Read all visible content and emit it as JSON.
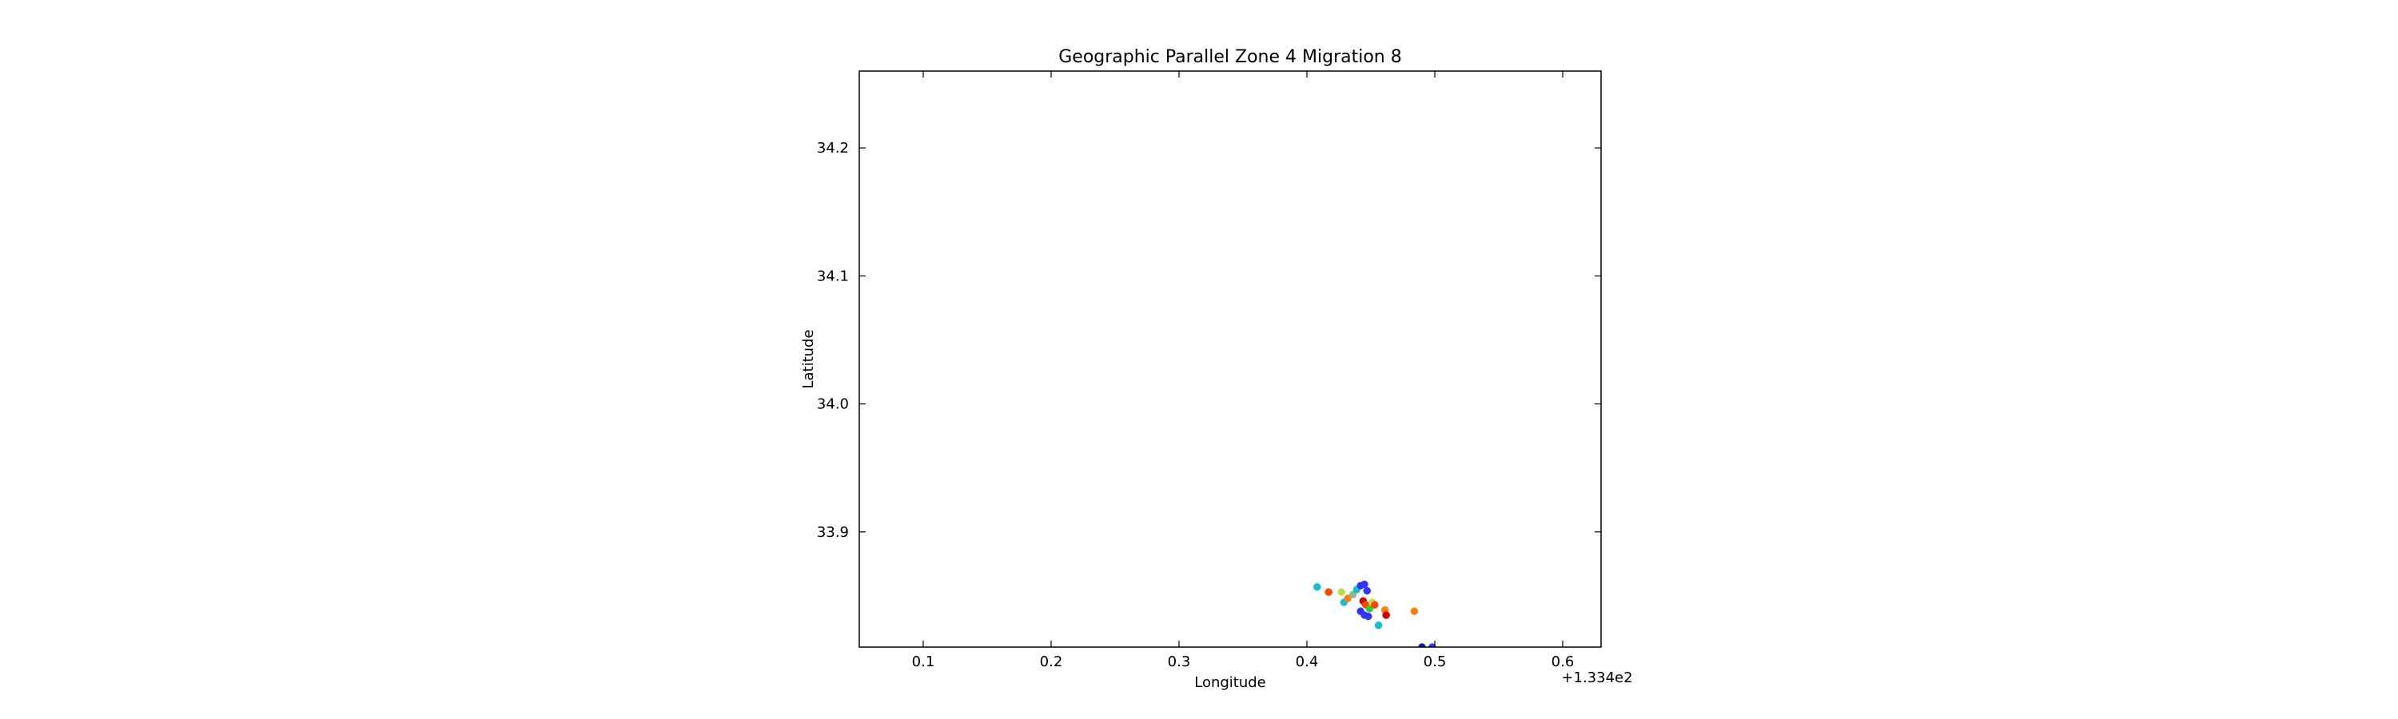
{
  "chart_data": {
    "type": "scatter",
    "title": "Geographic Parallel Zone 4 Migration 8",
    "xlabel": "Longitude",
    "ylabel": "Latitude",
    "x_offset_label": "+1.334e2",
    "xlim": [
      133.45,
      134.03
    ],
    "ylim": [
      33.81,
      34.26
    ],
    "x_ticks": [
      133.5,
      133.6,
      133.7,
      133.8,
      133.9,
      134.0
    ],
    "x_tick_labels": [
      "0.1",
      "0.2",
      "0.3",
      "0.4",
      "0.5",
      "0.6"
    ],
    "y_ticks": [
      33.9,
      34.0,
      34.1,
      34.2
    ],
    "y_tick_labels": [
      "33.9",
      "34.0",
      "34.1",
      "34.2"
    ],
    "grid": false,
    "points": [
      {
        "x": 133.808,
        "y": 33.857,
        "color": "#17becf"
      },
      {
        "x": 133.817,
        "y": 33.853,
        "color": "#ff4500"
      },
      {
        "x": 133.827,
        "y": 33.853,
        "color": "#bcde4a"
      },
      {
        "x": 133.829,
        "y": 33.845,
        "color": "#17becf"
      },
      {
        "x": 133.832,
        "y": 33.848,
        "color": "#ff7f0e"
      },
      {
        "x": 133.836,
        "y": 33.851,
        "color": "#8fbc8f"
      },
      {
        "x": 133.839,
        "y": 33.855,
        "color": "#17becf"
      },
      {
        "x": 133.842,
        "y": 33.858,
        "color": "#3333ff"
      },
      {
        "x": 133.845,
        "y": 33.859,
        "color": "#3333ff"
      },
      {
        "x": 133.847,
        "y": 33.854,
        "color": "#3333ff"
      },
      {
        "x": 133.844,
        "y": 33.846,
        "color": "#cc0000"
      },
      {
        "x": 133.846,
        "y": 33.843,
        "color": "#ff4500"
      },
      {
        "x": 133.849,
        "y": 33.84,
        "color": "#32cd32"
      },
      {
        "x": 133.842,
        "y": 33.838,
        "color": "#3333ff"
      },
      {
        "x": 133.845,
        "y": 33.835,
        "color": "#3333ff"
      },
      {
        "x": 133.848,
        "y": 33.834,
        "color": "#3333ff"
      },
      {
        "x": 133.851,
        "y": 33.845,
        "color": "#bcde4a"
      },
      {
        "x": 133.853,
        "y": 33.843,
        "color": "#ff4500"
      },
      {
        "x": 133.856,
        "y": 33.827,
        "color": "#17becf"
      },
      {
        "x": 133.861,
        "y": 33.839,
        "color": "#ff7f0e"
      },
      {
        "x": 133.862,
        "y": 33.835,
        "color": "#cc0000"
      },
      {
        "x": 133.884,
        "y": 33.838,
        "color": "#ff7f0e"
      },
      {
        "x": 133.89,
        "y": 33.81,
        "color": "#1a1a99"
      },
      {
        "x": 133.898,
        "y": 33.81,
        "color": "#3333ff"
      }
    ]
  }
}
